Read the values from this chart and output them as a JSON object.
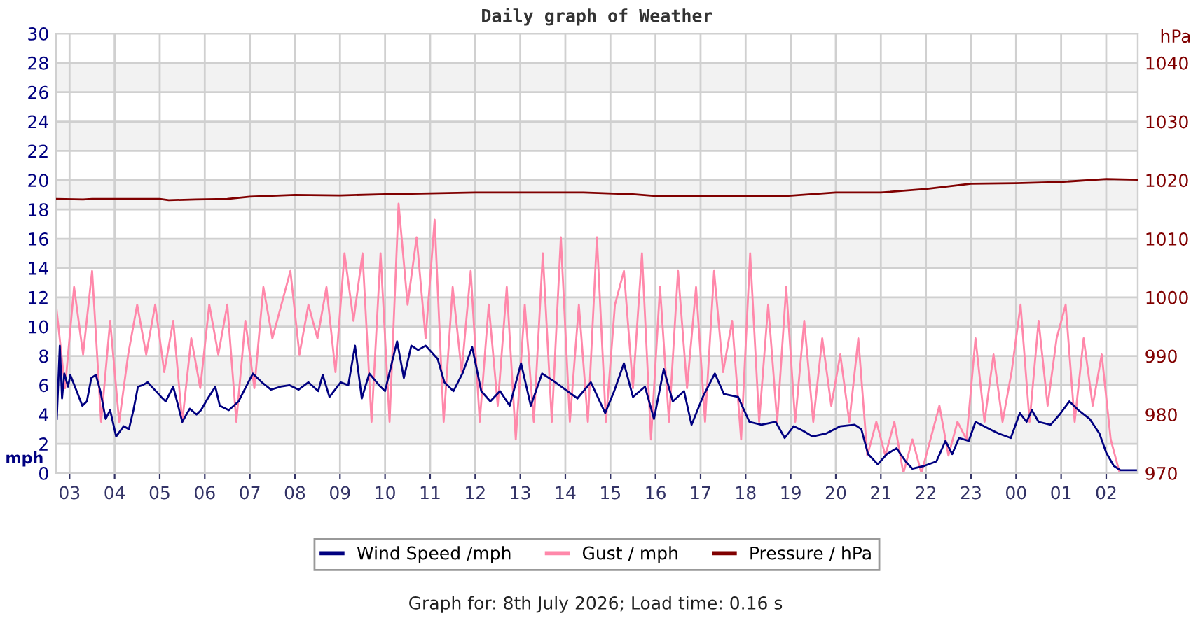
{
  "chart_data": {
    "type": "line",
    "title": "Daily graph of Weather",
    "ylabel": "mph",
    "y2label": "hPa",
    "annotations": [
      "Graph for: 8th July 2026; Load time: 0.16 s"
    ],
    "xlim": [
      "2026-07-07T02:42",
      "2026-07-08T02:42"
    ],
    "xticks": [
      {
        "value": "2026-07-07T03:00",
        "label": "03"
      },
      {
        "value": "2026-07-07T04:00",
        "label": "04"
      },
      {
        "value": "2026-07-07T05:00",
        "label": "05"
      },
      {
        "value": "2026-07-07T06:00",
        "label": "06"
      },
      {
        "value": "2026-07-07T07:00",
        "label": "07"
      },
      {
        "value": "2026-07-07T08:00",
        "label": "08"
      },
      {
        "value": "2026-07-07T09:00",
        "label": "09"
      },
      {
        "value": "2026-07-07T10:00",
        "label": "10"
      },
      {
        "value": "2026-07-07T11:00",
        "label": "11"
      },
      {
        "value": "2026-07-07T12:00",
        "label": "12"
      },
      {
        "value": "2026-07-07T13:00",
        "label": "13"
      },
      {
        "value": "2026-07-07T14:00",
        "label": "14"
      },
      {
        "value": "2026-07-07T15:00",
        "label": "15"
      },
      {
        "value": "2026-07-07T16:00",
        "label": "16"
      },
      {
        "value": "2026-07-07T17:00",
        "label": "17"
      },
      {
        "value": "2026-07-07T18:00",
        "label": "18"
      },
      {
        "value": "2026-07-07T19:00",
        "label": "19"
      },
      {
        "value": "2026-07-07T20:00",
        "label": "20"
      },
      {
        "value": "2026-07-07T21:00",
        "label": "21"
      },
      {
        "value": "2026-07-07T22:00",
        "label": "22"
      },
      {
        "value": "2026-07-07T23:00",
        "label": "23"
      },
      {
        "value": "2026-07-08T00:00",
        "label": "00"
      },
      {
        "value": "2026-07-08T01:00",
        "label": "01"
      },
      {
        "value": "2026-07-08T02:00",
        "label": "02"
      }
    ],
    "ylim": [
      0,
      30
    ],
    "yticks": [
      0,
      2,
      4,
      6,
      8,
      10,
      12,
      14,
      16,
      18,
      20,
      22,
      24,
      26,
      28,
      30
    ],
    "y2lim": [
      970,
      1045
    ],
    "y2ticks": [
      970,
      980,
      990,
      1000,
      1010,
      1020,
      1030,
      1040
    ],
    "grid": true,
    "legend": "bottom",
    "bands": [
      {
        "axis": "y",
        "from": 2,
        "to": 4,
        "color": "#f2f2f2"
      },
      {
        "axis": "y",
        "from": 6,
        "to": 8,
        "color": "#f2f2f2"
      },
      {
        "axis": "y",
        "from": 10,
        "to": 12,
        "color": "#f2f2f2"
      },
      {
        "axis": "y",
        "from": 14,
        "to": 16,
        "color": "#f2f2f2"
      },
      {
        "axis": "y",
        "from": 18,
        "to": 20,
        "color": "#f2f2f2"
      },
      {
        "axis": "y",
        "from": 22,
        "to": 24,
        "color": "#f2f2f2"
      },
      {
        "axis": "y",
        "from": 26,
        "to": 28,
        "color": "#f2f2f2"
      }
    ],
    "series": [
      {
        "name": "Gust / mph",
        "color": "#ff88aa",
        "x": [
          "2026-07-07T02:42",
          "2026-07-07T02:54",
          "2026-07-07T03:06",
          "2026-07-07T03:18",
          "2026-07-07T03:30",
          "2026-07-07T03:42",
          "2026-07-07T03:54",
          "2026-07-07T04:06",
          "2026-07-07T04:18",
          "2026-07-07T04:30",
          "2026-07-07T04:42",
          "2026-07-07T04:54",
          "2026-07-07T05:06",
          "2026-07-07T05:18",
          "2026-07-07T05:30",
          "2026-07-07T05:42",
          "2026-07-07T05:54",
          "2026-07-07T06:06",
          "2026-07-07T06:18",
          "2026-07-07T06:30",
          "2026-07-07T06:42",
          "2026-07-07T06:54",
          "2026-07-07T07:06",
          "2026-07-07T07:18",
          "2026-07-07T07:30",
          "2026-07-07T07:42",
          "2026-07-07T07:54",
          "2026-07-07T08:06",
          "2026-07-07T08:18",
          "2026-07-07T08:30",
          "2026-07-07T08:42",
          "2026-07-07T08:54",
          "2026-07-07T09:06",
          "2026-07-07T09:18",
          "2026-07-07T09:30",
          "2026-07-07T09:42",
          "2026-07-07T09:54",
          "2026-07-07T10:06",
          "2026-07-07T10:18",
          "2026-07-07T10:30",
          "2026-07-07T10:42",
          "2026-07-07T10:54",
          "2026-07-07T11:06",
          "2026-07-07T11:18",
          "2026-07-07T11:30",
          "2026-07-07T11:42",
          "2026-07-07T11:54",
          "2026-07-07T12:06",
          "2026-07-07T12:18",
          "2026-07-07T12:30",
          "2026-07-07T12:42",
          "2026-07-07T12:54",
          "2026-07-07T13:06",
          "2026-07-07T13:18",
          "2026-07-07T13:30",
          "2026-07-07T13:42",
          "2026-07-07T13:54",
          "2026-07-07T14:06",
          "2026-07-07T14:18",
          "2026-07-07T14:30",
          "2026-07-07T14:42",
          "2026-07-07T14:54",
          "2026-07-07T15:06",
          "2026-07-07T15:18",
          "2026-07-07T15:30",
          "2026-07-07T15:42",
          "2026-07-07T15:54",
          "2026-07-07T16:06",
          "2026-07-07T16:18",
          "2026-07-07T16:30",
          "2026-07-07T16:42",
          "2026-07-07T16:54",
          "2026-07-07T17:06",
          "2026-07-07T17:18",
          "2026-07-07T17:30",
          "2026-07-07T17:42",
          "2026-07-07T17:54",
          "2026-07-07T18:06",
          "2026-07-07T18:18",
          "2026-07-07T18:30",
          "2026-07-07T18:42",
          "2026-07-07T18:54",
          "2026-07-07T19:06",
          "2026-07-07T19:18",
          "2026-07-07T19:30",
          "2026-07-07T19:42",
          "2026-07-07T19:54",
          "2026-07-07T20:06",
          "2026-07-07T20:18",
          "2026-07-07T20:30",
          "2026-07-07T20:42",
          "2026-07-07T20:54",
          "2026-07-07T21:06",
          "2026-07-07T21:18",
          "2026-07-07T21:30",
          "2026-07-07T21:42",
          "2026-07-07T21:54",
          "2026-07-07T22:06",
          "2026-07-07T22:18",
          "2026-07-07T22:30",
          "2026-07-07T22:42",
          "2026-07-07T22:54",
          "2026-07-07T23:06",
          "2026-07-07T23:18",
          "2026-07-07T23:30",
          "2026-07-07T23:42",
          "2026-07-07T23:54",
          "2026-07-08T00:06",
          "2026-07-08T00:18",
          "2026-07-08T00:30",
          "2026-07-08T00:42",
          "2026-07-08T00:54",
          "2026-07-08T01:06",
          "2026-07-08T01:18",
          "2026-07-08T01:30",
          "2026-07-08T01:42",
          "2026-07-08T01:54",
          "2026-07-08T02:06",
          "2026-07-08T02:18",
          "2026-07-08T02:30",
          "2026-07-08T02:39"
        ],
        "values": [
          11.5,
          5.8,
          12.7,
          8.1,
          13.8,
          3.5,
          10.4,
          3.5,
          8.1,
          11.5,
          8.1,
          11.5,
          6.9,
          10.4,
          3.5,
          9.2,
          5.8,
          11.5,
          8.1,
          11.5,
          3.5,
          10.4,
          5.8,
          12.7,
          9.2,
          11.5,
          13.8,
          8.1,
          11.5,
          9.2,
          12.7,
          6.9,
          15.0,
          10.4,
          15.0,
          3.5,
          15.0,
          3.5,
          18.4,
          11.5,
          16.1,
          9.2,
          17.3,
          3.5,
          12.7,
          6.9,
          13.8,
          3.5,
          11.5,
          4.6,
          12.7,
          2.3,
          11.5,
          3.5,
          15.0,
          3.5,
          16.1,
          3.5,
          11.5,
          3.5,
          16.1,
          3.5,
          11.5,
          13.8,
          5.8,
          15.0,
          2.3,
          12.7,
          3.5,
          13.8,
          5.8,
          12.7,
          3.5,
          13.8,
          6.9,
          10.4,
          2.3,
          15.0,
          3.5,
          11.5,
          3.5,
          12.7,
          3.5,
          10.4,
          3.5,
          9.2,
          4.6,
          8.1,
          3.5,
          9.2,
          1.2,
          3.5,
          1.2,
          3.5,
          0.0,
          2.3,
          0.0,
          2.3,
          4.6,
          1.2,
          3.5,
          2.3,
          9.2,
          3.5,
          8.1,
          3.5,
          6.9,
          11.5,
          3.5,
          10.4,
          4.6,
          9.2,
          11.5,
          3.5,
          9.2,
          4.6,
          8.1,
          2.3,
          0.0,
          0.0,
          0.0
        ]
      },
      {
        "name": "Wind Speed /mph",
        "color": "#000080",
        "x": [
          "2026-07-07T02:43",
          "2026-07-07T02:47",
          "2026-07-07T02:50",
          "2026-07-07T02:53",
          "2026-07-07T02:58",
          "2026-07-07T03:01",
          "2026-07-07T03:11",
          "2026-07-07T03:17",
          "2026-07-07T03:23",
          "2026-07-07T03:29",
          "2026-07-07T03:35",
          "2026-07-07T03:41",
          "2026-07-07T03:48",
          "2026-07-07T03:54",
          "2026-07-07T04:02",
          "2026-07-07T04:12",
          "2026-07-07T04:19",
          "2026-07-07T04:25",
          "2026-07-07T04:31",
          "2026-07-07T04:37",
          "2026-07-07T04:44",
          "2026-07-07T04:53",
          "2026-07-07T05:02",
          "2026-07-07T05:08",
          "2026-07-07T05:18",
          "2026-07-07T05:30",
          "2026-07-07T05:40",
          "2026-07-07T05:49",
          "2026-07-07T05:55",
          "2026-07-07T06:04",
          "2026-07-07T06:14",
          "2026-07-07T06:20",
          "2026-07-07T06:32",
          "2026-07-07T06:45",
          "2026-07-07T07:04",
          "2026-07-07T07:16",
          "2026-07-07T07:28",
          "2026-07-07T07:41",
          "2026-07-07T07:53",
          "2026-07-07T08:05",
          "2026-07-07T08:18",
          "2026-07-07T08:31",
          "2026-07-07T08:37",
          "2026-07-07T08:46",
          "2026-07-07T09:01",
          "2026-07-07T09:11",
          "2026-07-07T09:20",
          "2026-07-07T09:29",
          "2026-07-07T09:39",
          "2026-07-07T09:52",
          "2026-07-07T10:00",
          "2026-07-07T10:07",
          "2026-07-07T10:16",
          "2026-07-07T10:25",
          "2026-07-07T10:35",
          "2026-07-07T10:44",
          "2026-07-07T10:54",
          "2026-07-07T11:10",
          "2026-07-07T11:19",
          "2026-07-07T11:31",
          "2026-07-07T11:43",
          "2026-07-07T11:56",
          "2026-07-07T12:08",
          "2026-07-07T12:20",
          "2026-07-07T12:33",
          "2026-07-07T12:46",
          "2026-07-07T13:01",
          "2026-07-07T13:14",
          "2026-07-07T13:29",
          "2026-07-07T13:44",
          "2026-07-07T14:00",
          "2026-07-07T14:16",
          "2026-07-07T14:34",
          "2026-07-07T14:53",
          "2026-07-07T15:05",
          "2026-07-07T15:18",
          "2026-07-07T15:30",
          "2026-07-07T15:46",
          "2026-07-07T15:58",
          "2026-07-07T16:11",
          "2026-07-07T16:23",
          "2026-07-07T16:38",
          "2026-07-07T16:48",
          "2026-07-07T17:03",
          "2026-07-07T17:19",
          "2026-07-07T17:31",
          "2026-07-07T17:50",
          "2026-07-07T18:05",
          "2026-07-07T18:21",
          "2026-07-07T18:40",
          "2026-07-07T18:52",
          "2026-07-07T19:04",
          "2026-07-07T19:16",
          "2026-07-07T19:29",
          "2026-07-07T19:47",
          "2026-07-07T20:06",
          "2026-07-07T20:25",
          "2026-07-07T20:34",
          "2026-07-07T20:43",
          "2026-07-07T20:56",
          "2026-07-07T21:08",
          "2026-07-07T21:21",
          "2026-07-07T21:33",
          "2026-07-07T21:42",
          "2026-07-07T21:58",
          "2026-07-07T22:14",
          "2026-07-07T22:26",
          "2026-07-07T22:35",
          "2026-07-07T22:44",
          "2026-07-07T22:57",
          "2026-07-07T23:06",
          "2026-07-07T23:25",
          "2026-07-07T23:37",
          "2026-07-07T23:53",
          "2026-07-08T00:05",
          "2026-07-08T00:14",
          "2026-07-08T00:21",
          "2026-07-08T00:30",
          "2026-07-08T00:46",
          "2026-07-08T00:58",
          "2026-07-08T01:11",
          "2026-07-08T01:23",
          "2026-07-08T01:38",
          "2026-07-08T01:51",
          "2026-07-08T02:00",
          "2026-07-08T02:10",
          "2026-07-08T02:19",
          "2026-07-08T02:41"
        ],
        "values": [
          3.7,
          8.7,
          5.1,
          6.8,
          5.9,
          6.7,
          5.4,
          4.6,
          4.9,
          6.5,
          6.7,
          5.6,
          3.7,
          4.3,
          2.5,
          3.2,
          3.0,
          4.3,
          5.9,
          6.0,
          6.2,
          5.7,
          5.2,
          4.9,
          5.9,
          3.5,
          4.4,
          4.0,
          4.3,
          5.1,
          5.9,
          4.6,
          4.3,
          4.9,
          6.8,
          6.2,
          5.7,
          5.9,
          6.0,
          5.7,
          6.2,
          5.6,
          6.7,
          5.2,
          6.2,
          6.0,
          8.7,
          5.1,
          6.8,
          6.0,
          5.6,
          7.1,
          9.0,
          6.5,
          8.7,
          8.4,
          8.7,
          7.8,
          6.2,
          5.6,
          6.8,
          8.6,
          5.6,
          4.9,
          5.6,
          4.6,
          7.5,
          4.6,
          6.8,
          6.3,
          5.7,
          5.1,
          6.2,
          4.1,
          5.6,
          7.5,
          5.2,
          5.9,
          3.7,
          7.1,
          4.9,
          5.6,
          3.3,
          5.2,
          6.8,
          5.4,
          5.2,
          3.5,
          3.3,
          3.5,
          2.4,
          3.2,
          2.9,
          2.5,
          2.7,
          3.2,
          3.3,
          3.0,
          1.3,
          0.6,
          1.3,
          1.7,
          0.8,
          0.3,
          0.5,
          0.8,
          2.2,
          1.3,
          2.4,
          2.2,
          3.5,
          3.0,
          2.7,
          2.4,
          4.1,
          3.5,
          4.3,
          3.5,
          3.3,
          4.0,
          4.9,
          4.3,
          3.7,
          2.7,
          1.4,
          0.5,
          0.2,
          0.2
        ]
      },
      {
        "name": "Pressure / hPa",
        "color": "#800000",
        "axis": "y2",
        "x": [
          "2026-07-07T02:42",
          "2026-07-07T03:18",
          "2026-07-07T03:30",
          "2026-07-07T05:00",
          "2026-07-07T05:12",
          "2026-07-07T05:48",
          "2026-07-07T06:30",
          "2026-07-07T07:00",
          "2026-07-07T08:00",
          "2026-07-07T09:00",
          "2026-07-07T10:00",
          "2026-07-07T12:00",
          "2026-07-07T13:00",
          "2026-07-07T14:24",
          "2026-07-07T15:30",
          "2026-07-07T16:00",
          "2026-07-07T18:54",
          "2026-07-07T20:00",
          "2026-07-07T21:00",
          "2026-07-07T22:00",
          "2026-07-07T23:00",
          "2026-07-08T00:00",
          "2026-07-08T01:00",
          "2026-07-08T02:00",
          "2026-07-08T02:41"
        ],
        "values": [
          1016.8,
          1016.7,
          1016.8,
          1016.8,
          1016.6,
          1016.7,
          1016.8,
          1017.2,
          1017.5,
          1017.4,
          1017.6,
          1017.9,
          1017.9,
          1017.9,
          1017.6,
          1017.3,
          1017.3,
          1017.9,
          1017.9,
          1018.5,
          1019.4,
          1019.5,
          1019.7,
          1020.2,
          1020.1
        ]
      }
    ]
  }
}
